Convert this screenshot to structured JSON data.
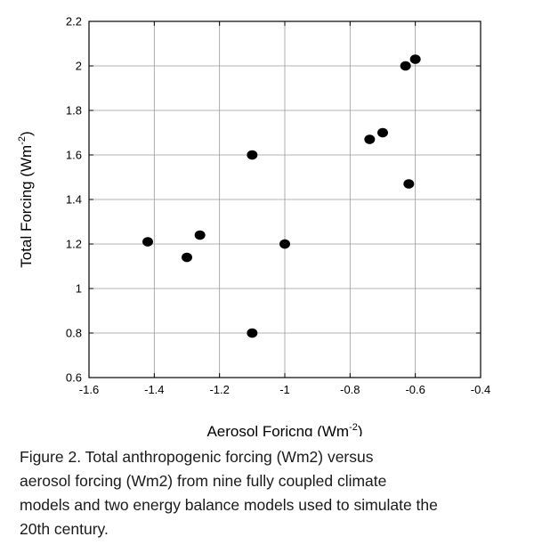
{
  "chart_data": {
    "type": "scatter",
    "title": "",
    "xlabel": "Aerosol Foricng (Wm",
    "xlabel_sup": "-2",
    "xlabel_end": ")",
    "ylabel": "Total Forcing (Wm",
    "ylabel_sup": "-2",
    "ylabel_end": ")",
    "xlim": [
      -1.6,
      -0.4
    ],
    "ylim": [
      0.6,
      2.2
    ],
    "xticks": [
      "-1.6",
      "-1.4",
      "-1.2",
      "-1",
      "-0.8",
      "-0.6",
      "-0.4"
    ],
    "yticks": [
      "0.6",
      "0.8",
      "1",
      "1.2",
      "1.4",
      "1.6",
      "1.8",
      "2",
      "2.2"
    ],
    "grid": true,
    "legend": "none",
    "marker_color": "#000000",
    "points": [
      {
        "x": -1.42,
        "y": 1.21
      },
      {
        "x": -1.3,
        "y": 1.14
      },
      {
        "x": -1.26,
        "y": 1.24
      },
      {
        "x": -1.1,
        "y": 1.6
      },
      {
        "x": -1.1,
        "y": 0.8
      },
      {
        "x": -1.0,
        "y": 1.2
      },
      {
        "x": -0.74,
        "y": 1.67
      },
      {
        "x": -0.7,
        "y": 1.7
      },
      {
        "x": -0.63,
        "y": 2.0
      },
      {
        "x": -0.6,
        "y": 2.03
      },
      {
        "x": -0.62,
        "y": 1.47
      }
    ]
  },
  "caption": {
    "lines": [
      "Figure 2. Total anthropogenic forcing (Wm2) versus",
      "aerosol forcing (Wm2) from nine fully coupled climate",
      "models and two energy balance models used to simulate the",
      "20th century."
    ]
  }
}
